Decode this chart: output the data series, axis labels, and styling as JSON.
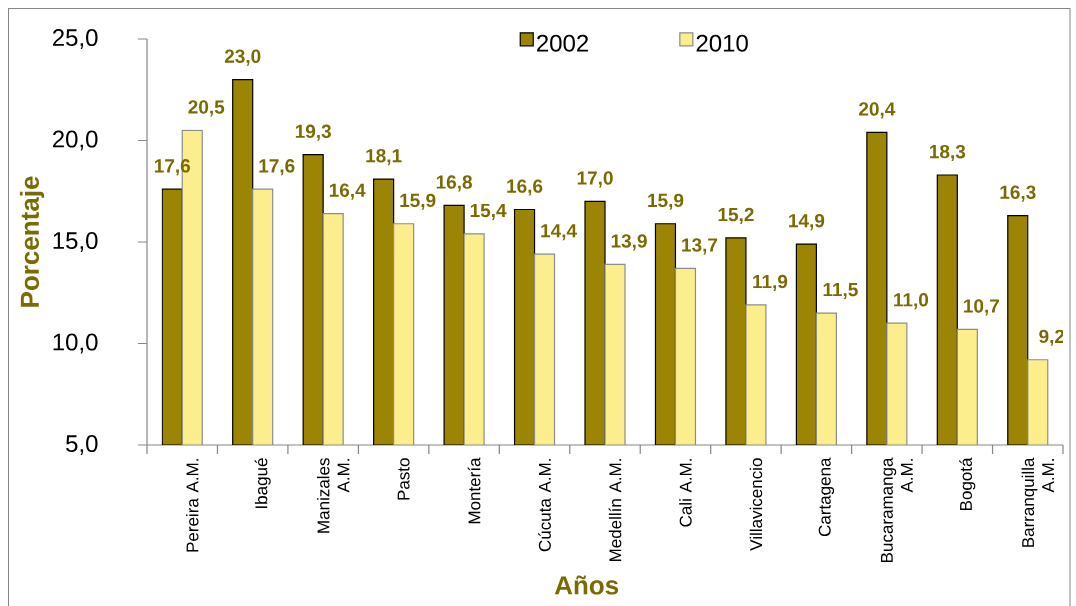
{
  "chart_data": {
    "type": "bar",
    "xlabel": "Años",
    "ylabel": "Porcentaje",
    "categories": [
      "Pereira A.M.",
      "Ibagué",
      "Manizales A.M.",
      "Pasto",
      "Montería",
      "Cúcuta A.M.",
      "Medellín A.M.",
      "Cali A.M.",
      "Villavicencio",
      "Cartagena",
      "Bucaramanga A.M.",
      "Bogotá",
      "Barranquilla A.M."
    ],
    "series": [
      {
        "name": "2002",
        "color": "#9c8504",
        "values": [
          17.6,
          23.0,
          19.3,
          18.1,
          16.8,
          16.6,
          17.0,
          15.9,
          15.2,
          14.9,
          20.4,
          18.3,
          16.3
        ],
        "value_labels": [
          "17,6",
          "23,0",
          "19,3",
          "18,1",
          "16,8",
          "16,6",
          "17,0",
          "15,9",
          "15,2",
          "14,9",
          "20,4",
          "18,3",
          "16,3"
        ]
      },
      {
        "name": "2010",
        "color": "#fcee8c",
        "values": [
          20.5,
          17.6,
          16.4,
          15.9,
          15.4,
          14.4,
          13.9,
          13.7,
          11.9,
          11.5,
          11.0,
          10.7,
          9.2
        ],
        "value_labels": [
          "20,5",
          "17,6",
          "16,4",
          "15,9",
          "15,4",
          "14,4",
          "13,9",
          "13,7",
          "11,9",
          "11,5",
          "11,0",
          "10,7",
          "9,2"
        ]
      }
    ],
    "ylim": [
      5,
      25
    ],
    "yticks": [
      {
        "value": 5,
        "label": "5,0"
      },
      {
        "value": 10,
        "label": "10,0"
      },
      {
        "value": 15,
        "label": "15,0"
      },
      {
        "value": 20,
        "label": "20,0"
      },
      {
        "value": 25,
        "label": "25,0"
      }
    ],
    "legend": "top"
  }
}
